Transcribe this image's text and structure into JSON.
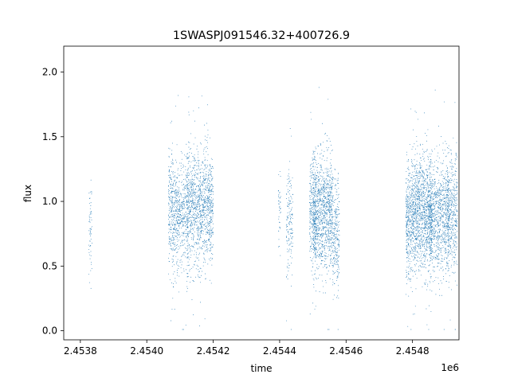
{
  "chart_data": {
    "type": "scatter",
    "title": "1SWASPJ091546.32+400726.9",
    "xlabel": "time",
    "ylabel": "flux",
    "x_offset_label": "1e6",
    "xlim": [
      2.45375,
      2.45494
    ],
    "ylim": [
      -0.07,
      2.2
    ],
    "x_ticks": [
      2.4538,
      2.454,
      2.4542,
      2.4544,
      2.4546,
      2.4548
    ],
    "x_tick_labels": [
      "2.4538",
      "2.4540",
      "2.4542",
      "2.4544",
      "2.4546",
      "2.4548"
    ],
    "y_ticks": [
      0.0,
      0.5,
      1.0,
      1.5,
      2.0
    ],
    "y_tick_labels": [
      "0.0",
      "0.5",
      "1.0",
      "1.5",
      "2.0"
    ],
    "grid": false,
    "marker_color": "#1f77b4",
    "observing_clusters": [
      {
        "x_center": 2.45383,
        "x_width": 1e-05,
        "y_mean": 0.8,
        "y_spread": 0.18,
        "count": 60
      },
      {
        "x_center": 2.45408,
        "x_width": 3e-05,
        "y_mean": 0.9,
        "y_spread": 0.22,
        "count": 420
      },
      {
        "x_center": 2.45411,
        "x_width": 3e-05,
        "y_mean": 0.88,
        "y_spread": 0.22,
        "count": 320
      },
      {
        "x_center": 2.45415,
        "x_width": 6e-05,
        "y_mean": 0.95,
        "y_spread": 0.22,
        "count": 900
      },
      {
        "x_center": 2.45419,
        "x_width": 2e-05,
        "y_mean": 0.95,
        "y_spread": 0.22,
        "count": 320
      },
      {
        "x_center": 2.4544,
        "x_width": 8e-06,
        "y_mean": 0.95,
        "y_spread": 0.15,
        "count": 40
      },
      {
        "x_center": 2.45443,
        "x_width": 2e-05,
        "y_mean": 0.85,
        "y_spread": 0.2,
        "count": 160
      },
      {
        "x_center": 2.4545,
        "x_width": 2e-05,
        "y_mean": 0.9,
        "y_spread": 0.22,
        "count": 260
      },
      {
        "x_center": 2.45453,
        "x_width": 6e-05,
        "y_mean": 0.9,
        "y_spread": 0.22,
        "count": 1100
      },
      {
        "x_center": 2.45457,
        "x_width": 2e-05,
        "y_mean": 0.75,
        "y_spread": 0.22,
        "count": 240
      },
      {
        "x_center": 2.45479,
        "x_width": 2e-05,
        "y_mean": 0.85,
        "y_spread": 0.22,
        "count": 380
      },
      {
        "x_center": 2.45483,
        "x_width": 6e-05,
        "y_mean": 0.9,
        "y_spread": 0.22,
        "count": 1200
      },
      {
        "x_center": 2.45488,
        "x_width": 6e-05,
        "y_mean": 0.88,
        "y_spread": 0.22,
        "count": 900
      },
      {
        "x_center": 2.45492,
        "x_width": 3e-05,
        "y_mean": 0.9,
        "y_spread": 0.22,
        "count": 420
      }
    ]
  }
}
